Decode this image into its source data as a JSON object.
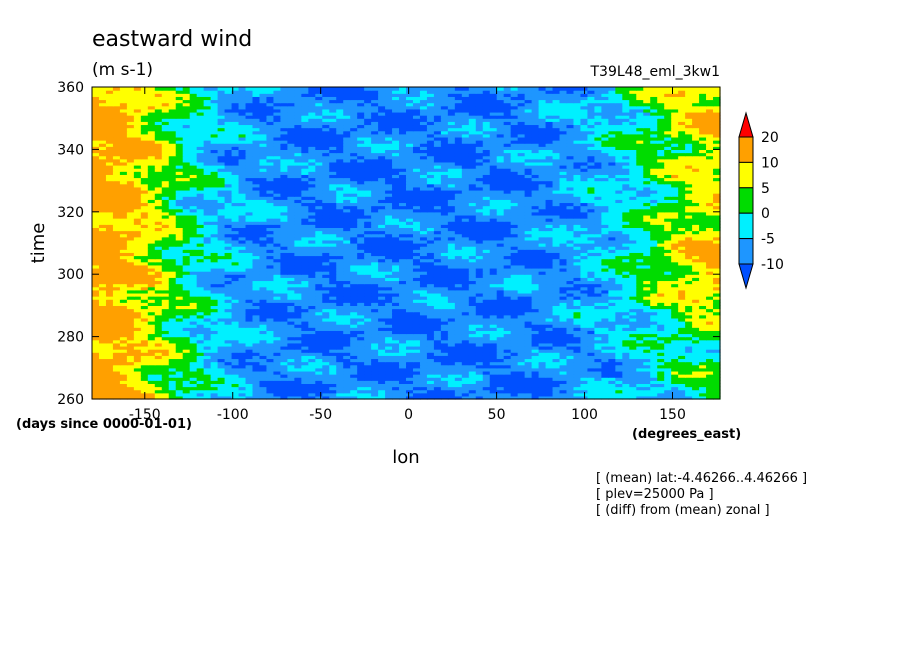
{
  "chart_data": {
    "type": "heatmap",
    "title": "eastward wind",
    "units": "(m s-1)",
    "run_label": "T39L48_eml_3kw1",
    "xlabel": "lon",
    "xunits": "(degrees_east)",
    "ylabel": "time",
    "yunits": "(days since 0000-01-01)",
    "xlim": [
      -180,
      177
    ],
    "ylim": [
      260,
      360
    ],
    "xticks": [
      -150,
      -100,
      -50,
      0,
      50,
      100,
      150
    ],
    "yticks": [
      260,
      280,
      300,
      320,
      340,
      360
    ],
    "grid": false,
    "legend": "right",
    "colorbar": {
      "levels": [
        -10,
        -5,
        0,
        5,
        10,
        20
      ],
      "colors": [
        "#0050ff",
        "#1e96ff",
        "#00f0ff",
        "#00dc00",
        "#ffff00",
        "#ffa000",
        "#ff0000"
      ],
      "extend": "both"
    },
    "notes": [
      "[ (mean) lat:-4.46266..4.46266 ]",
      "[ plev=25000 Pa ]",
      "[ (diff) from (mean) zonal ]"
    ]
  }
}
